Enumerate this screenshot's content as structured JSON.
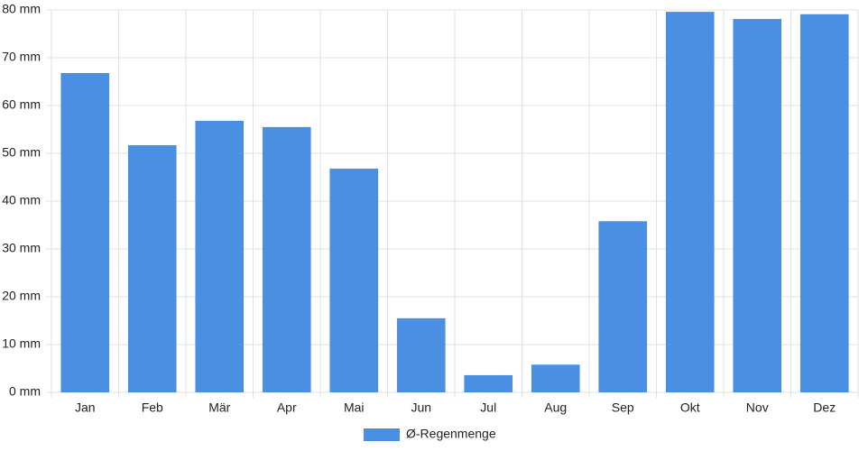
{
  "chart_data": {
    "type": "bar",
    "categories": [
      "Jan",
      "Feb",
      "Mär",
      "Apr",
      "Mai",
      "Jun",
      "Jul",
      "Aug",
      "Sep",
      "Okt",
      "Nov",
      "Dez"
    ],
    "series": [
      {
        "name": "Ø-Regenmenge",
        "color": "#4a8fe2",
        "values": [
          66.8,
          51.7,
          56.8,
          55.5,
          46.8,
          15.5,
          3.6,
          5.8,
          35.8,
          79.6,
          78.1,
          79.1
        ]
      }
    ],
    "ylim": [
      0,
      80
    ],
    "yticks": [
      {
        "value": 0,
        "label": "0 mm"
      },
      {
        "value": 10,
        "label": "10 mm"
      },
      {
        "value": 20,
        "label": "20 mm"
      },
      {
        "value": 30,
        "label": "30 mm"
      },
      {
        "value": 40,
        "label": "40 mm"
      },
      {
        "value": 50,
        "label": "50 mm"
      },
      {
        "value": 60,
        "label": "60 mm"
      },
      {
        "value": 70,
        "label": "70 mm"
      },
      {
        "value": 80,
        "label": "80 mm"
      }
    ],
    "grid": true
  }
}
